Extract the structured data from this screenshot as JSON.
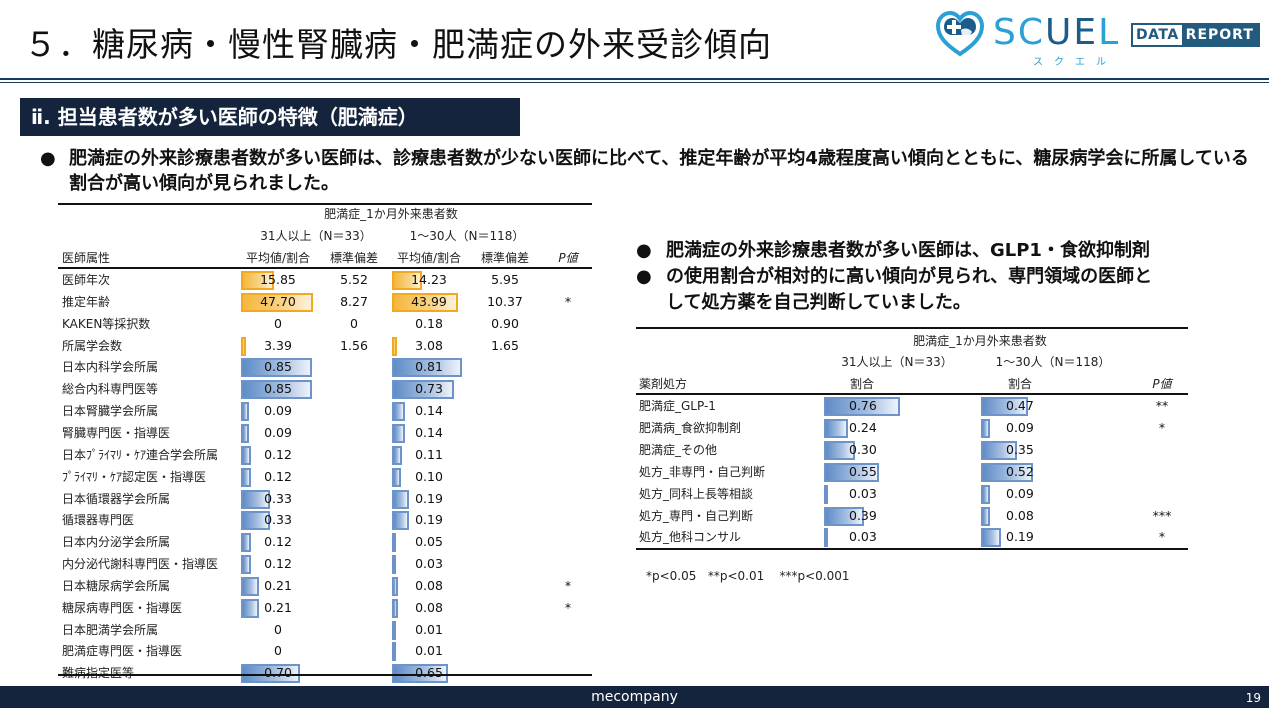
{
  "header": {
    "title": "５．糖尿病・慢性腎臓病・肥満症の外来受診傾向",
    "logo": {
      "word_light": "SC",
      "word_dark": "UE",
      "word_end": "L",
      "kana": "スクエル",
      "badge_left": "DATA",
      "badge_right": "REPORT",
      "icon": "heart-cross-icon"
    }
  },
  "section": {
    "title": "ⅱ. 担当患者数が多い医師の特徴（肥満症）"
  },
  "bullets": {
    "main": "肥満症の外来診療患者数が多い医師は、診療患者数が少ない医師に比べて、推定年齢が平均4歳程度高い傾向とともに、糖尿病学会に所属している割合が高い傾向が見られました。",
    "right": [
      "肥満症の外来診療患者数が多い医師は、GLP1・食欲抑制剤",
      "の使用割合が相対的に高い傾向が見られ、専門領域の医師と",
      "して処方薬を自己判断していました。"
    ],
    "dot": "●"
  },
  "left_table": {
    "group_header": "肥満症_1か月外来患者数",
    "group1": "31人以上（N＝33）",
    "group2": "1～30人（N＝118）",
    "columns": [
      "医師属性",
      "平均値/割合",
      "標準偏差",
      "平均値/割合",
      "標準偏差",
      "P値"
    ],
    "rows": [
      {
        "label": "医師年次",
        "g1": "15.85",
        "g1sd": "5.52",
        "g2": "14.23",
        "g2sd": "5.95",
        "p": "",
        "type": "orange",
        "w1": 33,
        "w2": 30
      },
      {
        "label": "推定年齢",
        "g1": "47.70",
        "g1sd": "8.27",
        "g2": "43.99",
        "g2sd": "10.37",
        "p": "*",
        "type": "orange",
        "w1": 72,
        "w2": 66
      },
      {
        "label": "KAKEN等採択数",
        "g1": "0",
        "g1sd": "0",
        "g2": "0.18",
        "g2sd": "0.90",
        "p": "",
        "type": "none",
        "w1": 0,
        "w2": 0
      },
      {
        "label": "所属学会数",
        "g1": "3.39",
        "g1sd": "1.56",
        "g2": "3.08",
        "g2sd": "1.65",
        "p": "",
        "type": "orange",
        "w1": 5,
        "w2": 5
      },
      {
        "label": "日本内科学会所属",
        "g1": "0.85",
        "g1sd": "",
        "g2": "0.81",
        "g2sd": "",
        "p": "",
        "type": "blue",
        "w1": 71,
        "w2": 70
      },
      {
        "label": "総合内科専門医等",
        "g1": "0.85",
        "g1sd": "",
        "g2": "0.73",
        "g2sd": "",
        "p": "",
        "type": "blue",
        "w1": 71,
        "w2": 62
      },
      {
        "label": "日本腎臓学会所属",
        "g1": "0.09",
        "g1sd": "",
        "g2": "0.14",
        "g2sd": "",
        "p": "",
        "type": "blue",
        "w1": 8,
        "w2": 13
      },
      {
        "label": "腎臓専門医・指導医",
        "g1": "0.09",
        "g1sd": "",
        "g2": "0.14",
        "g2sd": "",
        "p": "",
        "type": "blue",
        "w1": 8,
        "w2": 13
      },
      {
        "label": "日本ﾌﾟﾗｲﾏﾘ・ｹｱ連合学会所属",
        "g1": "0.12",
        "g1sd": "",
        "g2": "0.11",
        "g2sd": "",
        "p": "",
        "type": "blue",
        "w1": 10,
        "w2": 10
      },
      {
        "label": "ﾌﾟﾗｲﾏﾘ・ｹｱ認定医・指導医",
        "g1": "0.12",
        "g1sd": "",
        "g2": "0.10",
        "g2sd": "",
        "p": "",
        "type": "blue",
        "w1": 10,
        "w2": 9
      },
      {
        "label": "日本循環器学会所属",
        "g1": "0.33",
        "g1sd": "",
        "g2": "0.19",
        "g2sd": "",
        "p": "",
        "type": "blue",
        "w1": 29,
        "w2": 17
      },
      {
        "label": "循環器専門医",
        "g1": "0.33",
        "g1sd": "",
        "g2": "0.19",
        "g2sd": "",
        "p": "",
        "type": "blue",
        "w1": 29,
        "w2": 17
      },
      {
        "label": "日本内分泌学会所属",
        "g1": "0.12",
        "g1sd": "",
        "g2": "0.05",
        "g2sd": "",
        "p": "",
        "type": "blue",
        "w1": 10,
        "w2": 4
      },
      {
        "label": "内分泌代謝科専門医・指導医",
        "g1": "0.12",
        "g1sd": "",
        "g2": "0.03",
        "g2sd": "",
        "p": "",
        "type": "blue",
        "w1": 10,
        "w2": 2
      },
      {
        "label": "日本糖尿病学会所属",
        "g1": "0.21",
        "g1sd": "",
        "g2": "0.08",
        "g2sd": "",
        "p": "*",
        "type": "blue",
        "w1": 18,
        "w2": 6
      },
      {
        "label": "糖尿病専門医・指導医",
        "g1": "0.21",
        "g1sd": "",
        "g2": "0.08",
        "g2sd": "",
        "p": "*",
        "type": "blue",
        "w1": 18,
        "w2": 6
      },
      {
        "label": "日本肥満学会所属",
        "g1": "0",
        "g1sd": "",
        "g2": "0.01",
        "g2sd": "",
        "p": "",
        "type": "blue",
        "w1": 0,
        "w2": 1
      },
      {
        "label": "肥満症専門医・指導医",
        "g1": "0",
        "g1sd": "",
        "g2": "0.01",
        "g2sd": "",
        "p": "",
        "type": "blue",
        "w1": 0,
        "w2": 1
      },
      {
        "label": "難病指定医等",
        "g1": "0.70",
        "g1sd": "",
        "g2": "0.65",
        "g2sd": "",
        "p": "",
        "type": "blue",
        "w1": 59,
        "w2": 56
      }
    ]
  },
  "right_table": {
    "group_header": "肥満症_1か月外来患者数",
    "group1": "31人以上（N＝33）",
    "group2": "1～30人（N＝118）",
    "columns": [
      "薬剤処方",
      "割合",
      "割合",
      "P値"
    ],
    "rows": [
      {
        "label": "肥満症_GLP-1",
        "g1": "0.76",
        "g2": "0.47",
        "p": "**",
        "w1": 76,
        "w2": 47
      },
      {
        "label": "肥満病_食欲抑制剤",
        "g1": "0.24",
        "g2": "0.09",
        "p": "*",
        "w1": 24,
        "w2": 9
      },
      {
        "label": "肥満症_その他",
        "g1": "0.30",
        "g2": "0.35",
        "p": "",
        "w1": 31,
        "w2": 36
      },
      {
        "label": "処方_非専門・自己判断",
        "g1": "0.55",
        "g2": "0.52",
        "p": "",
        "w1": 55,
        "w2": 52
      },
      {
        "label": "処方_同科上長等相談",
        "g1": "0.03",
        "g2": "0.09",
        "p": "",
        "w1": 3,
        "w2": 9
      },
      {
        "label": "処方_専門・自己判断",
        "g1": "0.39",
        "g2": "0.08",
        "p": "***",
        "w1": 40,
        "w2": 9
      },
      {
        "label": "処方_他科コンサル",
        "g1": "0.03",
        "g2": "0.19",
        "p": "*",
        "w1": 3,
        "w2": 20
      }
    ],
    "footnote": "*p<0.05   **p<0.01    ***p<0.001"
  },
  "footer": {
    "company": "mecompany",
    "page": "19"
  },
  "colors": {
    "navy": "#14243d",
    "bar_blue": "#5f8cc7",
    "bar_orange": "#f5b73a",
    "logo_blue": "#2aa0d6"
  }
}
